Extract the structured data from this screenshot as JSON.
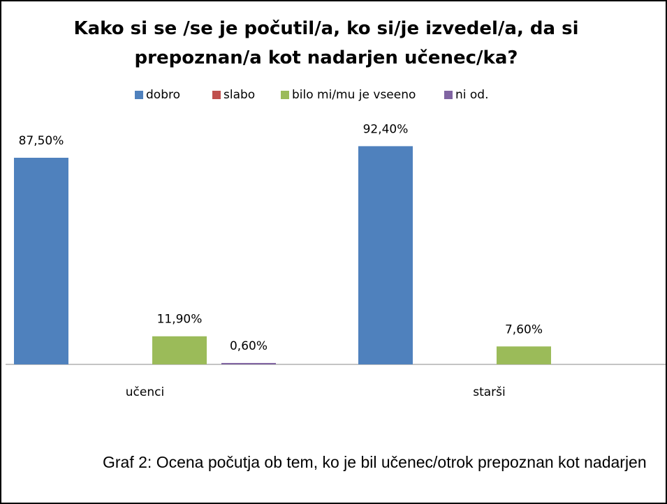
{
  "chart_data": {
    "type": "bar",
    "title": "Kako si se /se je počutil/a, ko si/je izvedel/a, da si prepoznan/a kot nadarjen učenec/ka?",
    "categories": [
      "učenci",
      "starši"
    ],
    "series": [
      {
        "name": "dobro",
        "color": "#4f81bd",
        "values": [
          87.5,
          92.4
        ],
        "value_labels": [
          "87,50%",
          "92,40%"
        ]
      },
      {
        "name": "slabo",
        "color": "#c0504d",
        "values": [
          null,
          null
        ],
        "value_labels": [
          null,
          null
        ]
      },
      {
        "name": "bilo mi/mu je vseeno",
        "color": "#9bbb59",
        "values": [
          11.9,
          7.6
        ],
        "value_labels": [
          "11,90%",
          "7,60%"
        ]
      },
      {
        "name": "ni od.",
        "color": "#8064a2",
        "values": [
          0.6,
          null
        ],
        "value_labels": [
          "0,60%",
          null
        ]
      }
    ],
    "legend": "top",
    "caption": "Graf 2: Ocena počutja ob tem, ko je bil učenec/otrok prepoznan kot nadarjen"
  }
}
